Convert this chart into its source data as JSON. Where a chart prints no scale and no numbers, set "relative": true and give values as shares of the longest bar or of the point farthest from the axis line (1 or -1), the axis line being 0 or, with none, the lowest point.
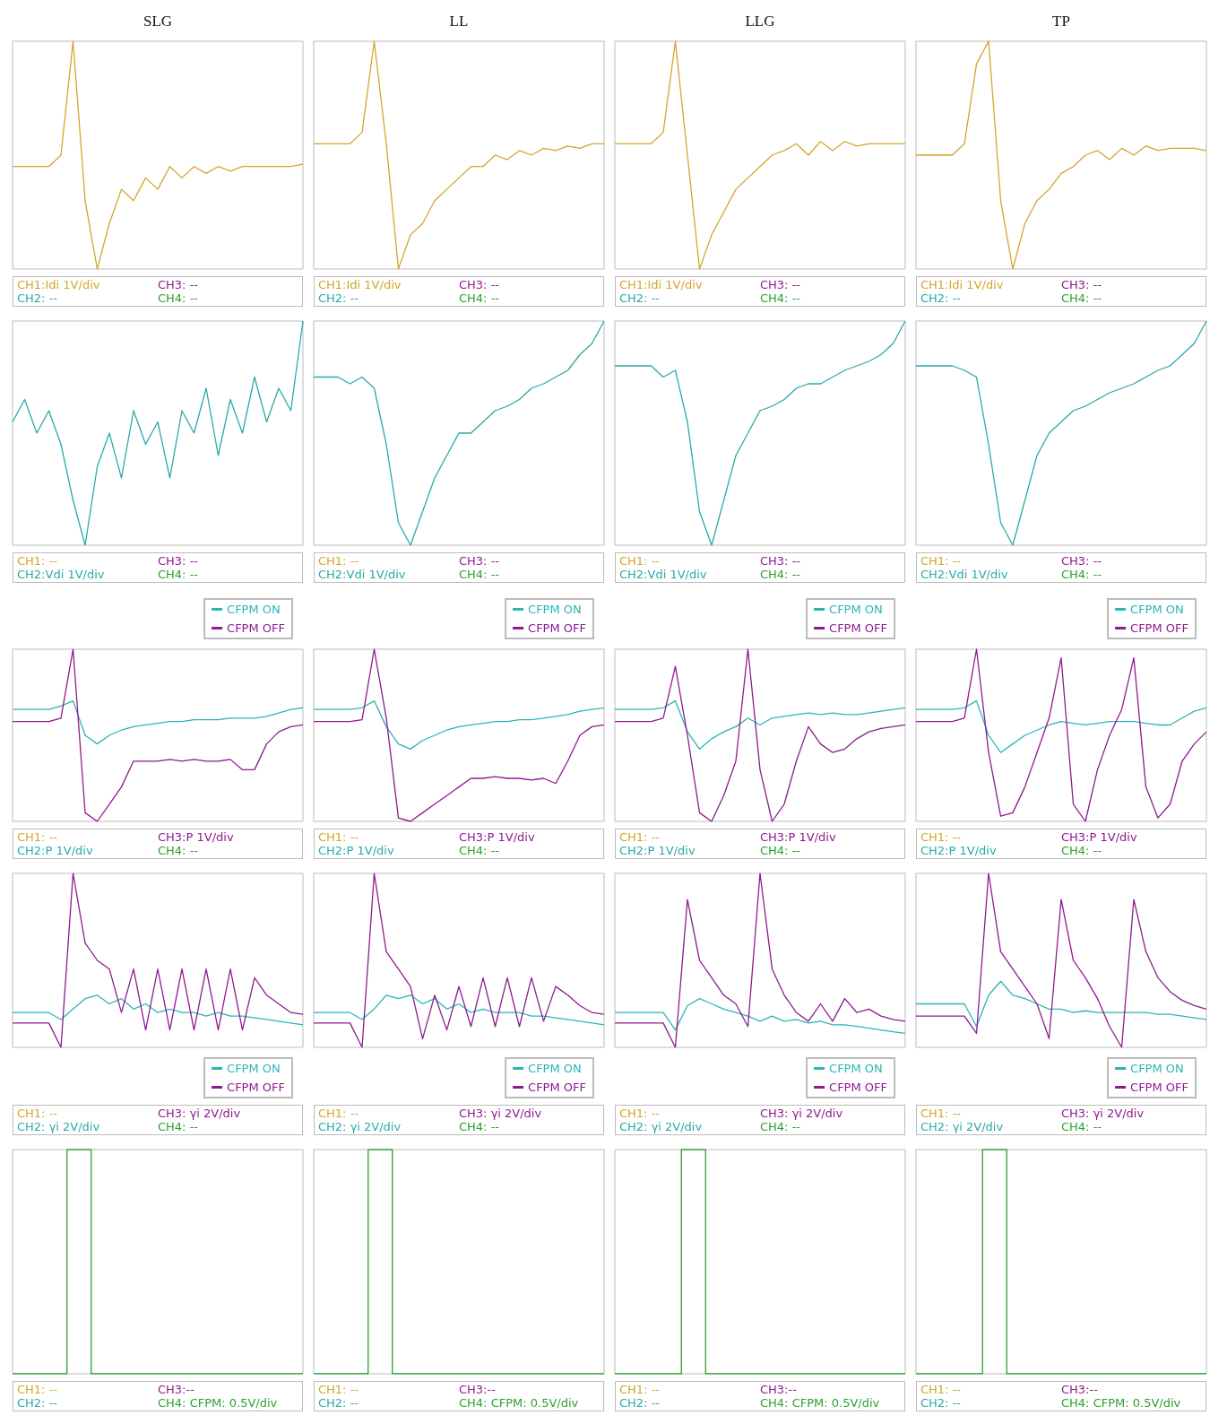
{
  "chart_data": [
    {
      "type": "line",
      "title": "SLG",
      "relative": true,
      "color": "#d4a52a",
      "categories": [
        null,
        null,
        null,
        null,
        null,
        null,
        null,
        null,
        null,
        null,
        null,
        null,
        null,
        null,
        null,
        null,
        null,
        null,
        null,
        null,
        null,
        null,
        null,
        null,
        null
      ],
      "values": [
        0.45,
        0.45,
        0.45,
        0.45,
        0.5,
        1,
        0.3,
        0,
        0.2,
        0.35,
        0.3,
        0.4,
        0.35,
        0.45,
        0.4,
        0.45,
        0.42,
        0.45,
        0.43,
        0.45,
        0.45,
        0.45,
        0.45,
        0.45,
        0.46
      ],
      "annotations": [
        "CH1:Idi 1V/div",
        "CH3: --",
        "CH2: --",
        "CH4: --"
      ]
    },
    {
      "type": "line",
      "title": "LL",
      "relative": true,
      "color": "#d4a52a",
      "categories": [
        null,
        null,
        null,
        null,
        null,
        null,
        null,
        null,
        null,
        null,
        null,
        null,
        null,
        null,
        null,
        null,
        null,
        null,
        null,
        null,
        null,
        null,
        null,
        null,
        null
      ],
      "values": [
        0.55,
        0.55,
        0.55,
        0.55,
        0.6,
        1,
        0.55,
        0,
        0.15,
        0.2,
        0.3,
        0.35,
        0.4,
        0.45,
        0.45,
        0.5,
        0.48,
        0.52,
        0.5,
        0.53,
        0.52,
        0.54,
        0.53,
        0.55,
        0.55
      ],
      "annotations": [
        "CH1:Idi 1V/div",
        "CH3: --",
        "CH2: --",
        "CH4: --"
      ]
    },
    {
      "type": "line",
      "title": "LLG",
      "relative": true,
      "color": "#d4a52a",
      "categories": [
        null,
        null,
        null,
        null,
        null,
        null,
        null,
        null,
        null,
        null,
        null,
        null,
        null,
        null,
        null,
        null,
        null,
        null,
        null,
        null,
        null,
        null,
        null,
        null,
        null
      ],
      "values": [
        0.55,
        0.55,
        0.55,
        0.55,
        0.6,
        1,
        0.5,
        0,
        0.15,
        0.25,
        0.35,
        0.4,
        0.45,
        0.5,
        0.52,
        0.55,
        0.5,
        0.56,
        0.52,
        0.56,
        0.54,
        0.55,
        0.55,
        0.55,
        0.55
      ],
      "annotations": [
        "CH1:Idi 1V/div",
        "CH3: --",
        "CH2: --",
        "CH4: --"
      ]
    },
    {
      "type": "line",
      "title": "TP",
      "relative": true,
      "color": "#d4a52a",
      "categories": [
        null,
        null,
        null,
        null,
        null,
        null,
        null,
        null,
        null,
        null,
        null,
        null,
        null,
        null,
        null,
        null,
        null,
        null,
        null,
        null,
        null,
        null,
        null,
        null,
        null
      ],
      "values": [
        0.5,
        0.5,
        0.5,
        0.5,
        0.55,
        0.9,
        1,
        0.3,
        0,
        0.2,
        0.3,
        0.35,
        0.42,
        0.45,
        0.5,
        0.52,
        0.48,
        0.53,
        0.5,
        0.54,
        0.52,
        0.53,
        0.53,
        0.53,
        0.52
      ],
      "annotations": [
        "CH1:Idi 1V/div",
        "CH3: --",
        "CH2: --",
        "CH4: --"
      ]
    },
    {
      "type": "line",
      "relative": true,
      "color": "#2aa9a9",
      "categories": [
        null,
        null,
        null,
        null,
        null,
        null,
        null,
        null,
        null,
        null,
        null,
        null,
        null,
        null,
        null,
        null,
        null,
        null,
        null,
        null,
        null,
        null,
        null,
        null,
        null
      ],
      "values": [
        0.55,
        0.65,
        0.5,
        0.6,
        0.45,
        0.2,
        0,
        0.35,
        0.5,
        0.3,
        0.6,
        0.45,
        0.55,
        0.3,
        0.6,
        0.5,
        0.7,
        0.4,
        0.65,
        0.5,
        0.75,
        0.55,
        0.7,
        0.6,
        1
      ],
      "annotations": [
        "CH1: --",
        "CH3: --",
        "CH2:Vdi 1V/div",
        "CH4: --"
      ]
    },
    {
      "type": "line",
      "relative": true,
      "color": "#2aa9a9",
      "categories": [
        null,
        null,
        null,
        null,
        null,
        null,
        null,
        null,
        null,
        null,
        null,
        null,
        null,
        null,
        null,
        null,
        null,
        null,
        null,
        null,
        null,
        null,
        null,
        null,
        null
      ],
      "values": [
        0.75,
        0.75,
        0.75,
        0.72,
        0.75,
        0.7,
        0.45,
        0.1,
        0,
        0.15,
        0.3,
        0.4,
        0.5,
        0.5,
        0.55,
        0.6,
        0.62,
        0.65,
        0.7,
        0.72,
        0.75,
        0.78,
        0.85,
        0.9,
        1
      ],
      "annotations": [
        "CH1: --",
        "CH3: --",
        "CH2:Vdi 1V/div",
        "CH4: --"
      ]
    },
    {
      "type": "line",
      "relative": true,
      "color": "#2aa9a9",
      "categories": [
        null,
        null,
        null,
        null,
        null,
        null,
        null,
        null,
        null,
        null,
        null,
        null,
        null,
        null,
        null,
        null,
        null,
        null,
        null,
        null,
        null,
        null,
        null,
        null,
        null
      ],
      "values": [
        0.8,
        0.8,
        0.8,
        0.8,
        0.75,
        0.78,
        0.55,
        0.15,
        0,
        0.2,
        0.4,
        0.5,
        0.6,
        0.62,
        0.65,
        0.7,
        0.72,
        0.72,
        0.75,
        0.78,
        0.8,
        0.82,
        0.85,
        0.9,
        1
      ],
      "annotations": [
        "CH1: --",
        "CH3: --",
        "CH2:Vdi 1V/div",
        "CH4: --"
      ]
    },
    {
      "type": "line",
      "relative": true,
      "color": "#2aa9a9",
      "categories": [
        null,
        null,
        null,
        null,
        null,
        null,
        null,
        null,
        null,
        null,
        null,
        null,
        null,
        null,
        null,
        null,
        null,
        null,
        null,
        null,
        null,
        null,
        null,
        null,
        null
      ],
      "values": [
        0.8,
        0.8,
        0.8,
        0.8,
        0.78,
        0.75,
        0.45,
        0.1,
        0,
        0.2,
        0.4,
        0.5,
        0.55,
        0.6,
        0.62,
        0.65,
        0.68,
        0.7,
        0.72,
        0.75,
        0.78,
        0.8,
        0.85,
        0.9,
        1
      ],
      "annotations": [
        "CH1: --",
        "CH3: --",
        "CH2:Vdi 1V/div",
        "CH4: --"
      ]
    },
    {
      "type": "line",
      "relative": true,
      "legend": "top right",
      "categories": [
        null,
        null,
        null,
        null,
        null,
        null,
        null,
        null,
        null,
        null,
        null,
        null,
        null,
        null,
        null,
        null,
        null,
        null,
        null,
        null,
        null,
        null,
        null,
        null,
        null
      ],
      "series": [
        {
          "name": "CFPM ON",
          "color": "#2bb5b5",
          "values": [
            0.65,
            0.65,
            0.65,
            0.65,
            0.67,
            0.7,
            0.5,
            0.45,
            0.5,
            0.53,
            0.55,
            0.56,
            0.57,
            0.58,
            0.58,
            0.59,
            0.59,
            0.59,
            0.6,
            0.6,
            0.6,
            0.61,
            0.63,
            0.65,
            0.66
          ]
        },
        {
          "name": "CFPM OFF",
          "color": "#8e1a8e",
          "values": [
            0.58,
            0.58,
            0.58,
            0.58,
            0.6,
            1,
            0.05,
            0,
            0.1,
            0.2,
            0.35,
            0.35,
            0.35,
            0.36,
            0.35,
            0.36,
            0.35,
            0.35,
            0.36,
            0.3,
            0.3,
            0.45,
            0.52,
            0.55,
            0.56
          ]
        }
      ],
      "annotations": [
        "CH1: --",
        "CH3:P 1V/div",
        "CH2:P 1V/div",
        "CH4: --"
      ]
    },
    {
      "type": "line",
      "relative": true,
      "legend": "top right",
      "categories": [
        null,
        null,
        null,
        null,
        null,
        null,
        null,
        null,
        null,
        null,
        null,
        null,
        null,
        null,
        null,
        null,
        null,
        null,
        null,
        null,
        null,
        null,
        null,
        null,
        null
      ],
      "series": [
        {
          "name": "CFPM ON",
          "color": "#2bb5b5",
          "values": [
            0.65,
            0.65,
            0.65,
            0.65,
            0.66,
            0.7,
            0.55,
            0.45,
            0.42,
            0.47,
            0.5,
            0.53,
            0.55,
            0.56,
            0.57,
            0.58,
            0.58,
            0.59,
            0.59,
            0.6,
            0.61,
            0.62,
            0.64,
            0.65,
            0.66
          ]
        },
        {
          "name": "CFPM OFF",
          "color": "#8e1a8e",
          "values": [
            0.58,
            0.58,
            0.58,
            0.58,
            0.59,
            1,
            0.6,
            0.02,
            0,
            0.05,
            0.1,
            0.15,
            0.2,
            0.25,
            0.25,
            0.26,
            0.25,
            0.25,
            0.24,
            0.25,
            0.22,
            0.35,
            0.5,
            0.55,
            0.56
          ]
        }
      ],
      "annotations": [
        "CH1: --",
        "CH3:P 1V/div",
        "CH2:P 1V/div",
        "CH4: --"
      ]
    },
    {
      "type": "line",
      "relative": true,
      "legend": "top right",
      "categories": [
        null,
        null,
        null,
        null,
        null,
        null,
        null,
        null,
        null,
        null,
        null,
        null,
        null,
        null,
        null,
        null,
        null,
        null,
        null,
        null,
        null,
        null,
        null,
        null,
        null
      ],
      "series": [
        {
          "name": "CFPM ON",
          "color": "#2bb5b5",
          "values": [
            0.65,
            0.65,
            0.65,
            0.65,
            0.66,
            0.7,
            0.52,
            0.42,
            0.48,
            0.52,
            0.55,
            0.6,
            0.56,
            0.6,
            0.61,
            0.62,
            0.63,
            0.62,
            0.63,
            0.62,
            0.62,
            0.63,
            0.64,
            0.65,
            0.66
          ]
        },
        {
          "name": "CFPM OFF",
          "color": "#8e1a8e",
          "values": [
            0.58,
            0.58,
            0.58,
            0.58,
            0.6,
            0.9,
            0.5,
            0.05,
            0,
            0.15,
            0.35,
            1,
            0.3,
            0,
            0.1,
            0.35,
            0.55,
            0.45,
            0.4,
            0.42,
            0.48,
            0.52,
            0.54,
            0.55,
            0.56
          ]
        }
      ],
      "annotations": [
        "CH1: --",
        "CH3:P 1V/div",
        "CH2:P 1V/div",
        "CH4: --"
      ]
    },
    {
      "type": "line",
      "relative": true,
      "legend": "top right",
      "categories": [
        null,
        null,
        null,
        null,
        null,
        null,
        null,
        null,
        null,
        null,
        null,
        null,
        null,
        null,
        null,
        null,
        null,
        null,
        null,
        null,
        null,
        null,
        null,
        null,
        null
      ],
      "series": [
        {
          "name": "CFPM ON",
          "color": "#2bb5b5",
          "values": [
            0.65,
            0.65,
            0.65,
            0.65,
            0.66,
            0.7,
            0.5,
            0.4,
            0.45,
            0.5,
            0.53,
            0.56,
            0.58,
            0.57,
            0.56,
            0.57,
            0.58,
            0.58,
            0.58,
            0.57,
            0.56,
            0.56,
            0.6,
            0.64,
            0.66
          ]
        },
        {
          "name": "CFPM OFF",
          "color": "#8e1a8e",
          "values": [
            0.58,
            0.58,
            0.58,
            0.58,
            0.6,
            1,
            0.4,
            0.03,
            0.05,
            0.2,
            0.4,
            0.6,
            0.95,
            0.1,
            0,
            0.3,
            0.5,
            0.65,
            0.95,
            0.2,
            0.02,
            0.1,
            0.35,
            0.45,
            0.52
          ]
        }
      ],
      "annotations": [
        "CH1: --",
        "CH3:P 1V/div",
        "CH2:P 1V/div",
        "CH4: --"
      ]
    },
    {
      "type": "line",
      "relative": true,
      "legend": "bottom right",
      "categories": [
        null,
        null,
        null,
        null,
        null,
        null,
        null,
        null,
        null,
        null,
        null,
        null,
        null,
        null,
        null,
        null,
        null,
        null,
        null,
        null,
        null,
        null,
        null,
        null,
        null
      ],
      "series": [
        {
          "name": "CFPM ON",
          "color": "#2bb5b5",
          "values": [
            0.2,
            0.2,
            0.2,
            0.2,
            0.16,
            0.22,
            0.28,
            0.3,
            0.25,
            0.28,
            0.22,
            0.25,
            0.2,
            0.22,
            0.2,
            0.2,
            0.18,
            0.2,
            0.18,
            0.18,
            0.17,
            0.16,
            0.15,
            0.14,
            0.13
          ]
        },
        {
          "name": "CFPM OFF",
          "color": "#8e1a8e",
          "values": [
            0.14,
            0.14,
            0.14,
            0.14,
            0,
            1,
            0.6,
            0.5,
            0.45,
            0.2,
            0.45,
            0.1,
            0.45,
            0.1,
            0.45,
            0.1,
            0.45,
            0.1,
            0.45,
            0.1,
            0.4,
            0.3,
            0.25,
            0.2,
            0.19
          ]
        }
      ],
      "annotations": [
        "CH1: --",
        "CH3: γi 2V/div",
        "CH2: γi 2V/div",
        "CH4: --"
      ]
    },
    {
      "type": "line",
      "relative": true,
      "legend": "bottom right",
      "categories": [
        null,
        null,
        null,
        null,
        null,
        null,
        null,
        null,
        null,
        null,
        null,
        null,
        null,
        null,
        null,
        null,
        null,
        null,
        null,
        null,
        null,
        null,
        null,
        null,
        null
      ],
      "series": [
        {
          "name": "CFPM ON",
          "color": "#2bb5b5",
          "values": [
            0.2,
            0.2,
            0.2,
            0.2,
            0.16,
            0.22,
            0.3,
            0.28,
            0.3,
            0.25,
            0.28,
            0.22,
            0.25,
            0.2,
            0.22,
            0.2,
            0.2,
            0.2,
            0.18,
            0.18,
            0.17,
            0.16,
            0.15,
            0.14,
            0.13
          ]
        },
        {
          "name": "CFPM OFF",
          "color": "#8e1a8e",
          "values": [
            0.14,
            0.14,
            0.14,
            0.14,
            0,
            1,
            0.55,
            0.45,
            0.35,
            0.05,
            0.3,
            0.1,
            0.35,
            0.12,
            0.4,
            0.12,
            0.4,
            0.12,
            0.4,
            0.15,
            0.35,
            0.3,
            0.24,
            0.2,
            0.19
          ]
        }
      ],
      "annotations": [
        "CH1: --",
        "CH3: γi 2V/div",
        "CH2: γi 2V/div",
        "CH4: --"
      ]
    },
    {
      "type": "line",
      "relative": true,
      "legend": "bottom right",
      "categories": [
        null,
        null,
        null,
        null,
        null,
        null,
        null,
        null,
        null,
        null,
        null,
        null,
        null,
        null,
        null,
        null,
        null,
        null,
        null,
        null,
        null,
        null,
        null,
        null,
        null
      ],
      "series": [
        {
          "name": "CFPM ON",
          "color": "#2bb5b5",
          "values": [
            0.2,
            0.2,
            0.2,
            0.2,
            0.2,
            0.1,
            0.24,
            0.28,
            0.25,
            0.22,
            0.2,
            0.18,
            0.15,
            0.18,
            0.15,
            0.16,
            0.14,
            0.15,
            0.13,
            0.13,
            0.12,
            0.11,
            0.1,
            0.09,
            0.08
          ]
        },
        {
          "name": "CFPM OFF",
          "color": "#8e1a8e",
          "values": [
            0.14,
            0.14,
            0.14,
            0.14,
            0.14,
            0,
            0.85,
            0.5,
            0.4,
            0.3,
            0.25,
            0.12,
            1,
            0.45,
            0.3,
            0.2,
            0.15,
            0.25,
            0.15,
            0.28,
            0.2,
            0.22,
            0.18,
            0.16,
            0.15
          ]
        }
      ],
      "annotations": [
        "CH1: --",
        "CH3: γi 2V/div",
        "CH2: γi 2V/div",
        "CH4: --"
      ]
    },
    {
      "type": "line",
      "relative": true,
      "legend": "bottom right",
      "categories": [
        null,
        null,
        null,
        null,
        null,
        null,
        null,
        null,
        null,
        null,
        null,
        null,
        null,
        null,
        null,
        null,
        null,
        null,
        null,
        null,
        null,
        null,
        null,
        null,
        null
      ],
      "series": [
        {
          "name": "CFPM ON",
          "color": "#2bb5b5",
          "values": [
            0.25,
            0.25,
            0.25,
            0.25,
            0.25,
            0.12,
            0.3,
            0.38,
            0.3,
            0.28,
            0.25,
            0.22,
            0.22,
            0.2,
            0.21,
            0.2,
            0.2,
            0.2,
            0.2,
            0.2,
            0.19,
            0.19,
            0.18,
            0.17,
            0.16
          ]
        },
        {
          "name": "CFPM OFF",
          "color": "#8e1a8e",
          "values": [
            0.18,
            0.18,
            0.18,
            0.18,
            0.18,
            0.08,
            1,
            0.55,
            0.45,
            0.35,
            0.25,
            0.05,
            0.85,
            0.5,
            0.4,
            0.28,
            0.12,
            0,
            0.85,
            0.55,
            0.4,
            0.32,
            0.27,
            0.24,
            0.22
          ]
        }
      ],
      "annotations": [
        "CH1: --",
        "CH3: γi 2V/div",
        "CH2: γi 2V/div",
        "CH4: --"
      ]
    },
    {
      "type": "step",
      "relative": true,
      "color": "#2ca02c",
      "categories": [
        null,
        null,
        null,
        null,
        null,
        null,
        null,
        null,
        null,
        null,
        null,
        null,
        null,
        null,
        null,
        null,
        null,
        null,
        null,
        null,
        null,
        null,
        null,
        null,
        null
      ],
      "values": [
        0,
        0,
        0,
        0,
        0,
        1,
        1,
        0,
        0,
        0,
        0,
        0,
        0,
        0,
        0,
        0,
        0,
        0,
        0,
        0,
        0,
        0,
        0,
        0,
        0
      ],
      "annotations": [
        "CH1: --",
        "CH3:--",
        "CH2: --",
        "CH4: CFPM: 0.5V/div"
      ]
    },
    {
      "type": "step",
      "relative": true,
      "color": "#2ca02c",
      "categories": [
        null,
        null,
        null,
        null,
        null,
        null,
        null,
        null,
        null,
        null,
        null,
        null,
        null,
        null,
        null,
        null,
        null,
        null,
        null,
        null,
        null,
        null,
        null,
        null,
        null
      ],
      "values": [
        0,
        0,
        0,
        0,
        0,
        1,
        1,
        0,
        0,
        0,
        0,
        0,
        0,
        0,
        0,
        0,
        0,
        0,
        0,
        0,
        0,
        0,
        0,
        0,
        0
      ],
      "annotations": [
        "CH1: --",
        "CH3:--",
        "CH2: --",
        "CH4: CFPM: 0.5V/div"
      ]
    },
    {
      "type": "step",
      "relative": true,
      "color": "#2ca02c",
      "categories": [
        null,
        null,
        null,
        null,
        null,
        null,
        null,
        null,
        null,
        null,
        null,
        null,
        null,
        null,
        null,
        null,
        null,
        null,
        null,
        null,
        null,
        null,
        null,
        null,
        null
      ],
      "values": [
        0,
        0,
        0,
        0,
        0,
        0,
        1,
        1,
        0,
        0,
        0,
        0,
        0,
        0,
        0,
        0,
        0,
        0,
        0,
        0,
        0,
        0,
        0,
        0,
        0
      ],
      "annotations": [
        "CH1: --",
        "CH3:--",
        "CH2: --",
        "CH4: CFPM: 0.5V/div"
      ]
    },
    {
      "type": "step",
      "relative": true,
      "color": "#2ca02c",
      "categories": [
        null,
        null,
        null,
        null,
        null,
        null,
        null,
        null,
        null,
        null,
        null,
        null,
        null,
        null,
        null,
        null,
        null,
        null,
        null,
        null,
        null,
        null,
        null,
        null,
        null
      ],
      "values": [
        0,
        0,
        0,
        0,
        0,
        0,
        1,
        1,
        0,
        0,
        0,
        0,
        0,
        0,
        0,
        0,
        0,
        0,
        0,
        0,
        0,
        0,
        0,
        0,
        0
      ],
      "annotations": [
        "CH1: --",
        "CH3:--",
        "CH2: --",
        "CH4: CFPM: 0.5V/div"
      ]
    }
  ]
}
